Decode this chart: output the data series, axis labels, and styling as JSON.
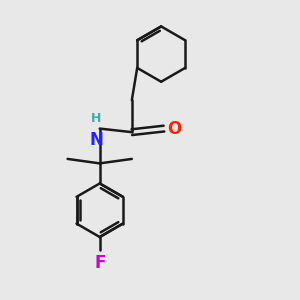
{
  "background_color": "#e8e8e8",
  "bond_color": "#1a1a1a",
  "bond_width": 1.8,
  "N_color": "#2222ff",
  "O_color": "#ff2200",
  "F_color": "#cc00cc",
  "H_color": "#44aaaa",
  "figsize": [
    3.0,
    3.0
  ],
  "dpi": 100,
  "xlim": [
    -2.2,
    2.8
  ],
  "ylim": [
    -4.0,
    2.6
  ]
}
